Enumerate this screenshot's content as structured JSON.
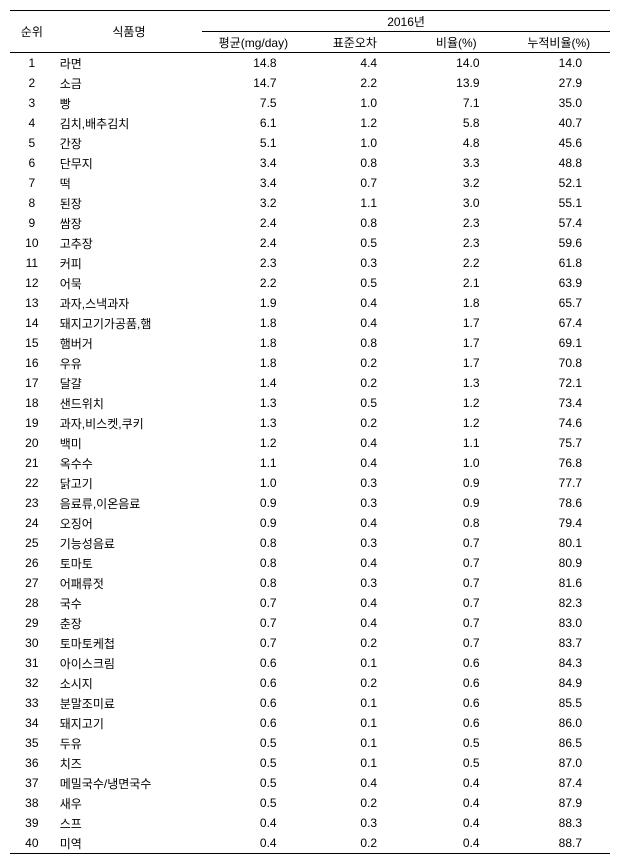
{
  "headers": {
    "rank": "순위",
    "foodName": "식품명",
    "year": "2016년",
    "avg": "평균(mg/day)",
    "stdErr": "표준오차",
    "ratio": "비율(%)",
    "cumRatio": "누적비율(%)"
  },
  "rows": [
    {
      "rank": "1",
      "name": "라면",
      "avg": "14.8",
      "stdErr": "4.4",
      "ratio": "14.0",
      "cumRatio": "14.0"
    },
    {
      "rank": "2",
      "name": "소금",
      "avg": "14.7",
      "stdErr": "2.2",
      "ratio": "13.9",
      "cumRatio": "27.9"
    },
    {
      "rank": "3",
      "name": "빵",
      "avg": "7.5",
      "stdErr": "1.0",
      "ratio": "7.1",
      "cumRatio": "35.0"
    },
    {
      "rank": "4",
      "name": "김치,배추김치",
      "avg": "6.1",
      "stdErr": "1.2",
      "ratio": "5.8",
      "cumRatio": "40.7"
    },
    {
      "rank": "5",
      "name": "간장",
      "avg": "5.1",
      "stdErr": "1.0",
      "ratio": "4.8",
      "cumRatio": "45.6"
    },
    {
      "rank": "6",
      "name": "단무지",
      "avg": "3.4",
      "stdErr": "0.8",
      "ratio": "3.3",
      "cumRatio": "48.8"
    },
    {
      "rank": "7",
      "name": "떡",
      "avg": "3.4",
      "stdErr": "0.7",
      "ratio": "3.2",
      "cumRatio": "52.1"
    },
    {
      "rank": "8",
      "name": "된장",
      "avg": "3.2",
      "stdErr": "1.1",
      "ratio": "3.0",
      "cumRatio": "55.1"
    },
    {
      "rank": "9",
      "name": "쌈장",
      "avg": "2.4",
      "stdErr": "0.8",
      "ratio": "2.3",
      "cumRatio": "57.4"
    },
    {
      "rank": "10",
      "name": "고추장",
      "avg": "2.4",
      "stdErr": "0.5",
      "ratio": "2.3",
      "cumRatio": "59.6"
    },
    {
      "rank": "11",
      "name": "커피",
      "avg": "2.3",
      "stdErr": "0.3",
      "ratio": "2.2",
      "cumRatio": "61.8"
    },
    {
      "rank": "12",
      "name": "어묵",
      "avg": "2.2",
      "stdErr": "0.5",
      "ratio": "2.1",
      "cumRatio": "63.9"
    },
    {
      "rank": "13",
      "name": "과자,스낵과자",
      "avg": "1.9",
      "stdErr": "0.4",
      "ratio": "1.8",
      "cumRatio": "65.7"
    },
    {
      "rank": "14",
      "name": "돼지고기가공품,햄",
      "avg": "1.8",
      "stdErr": "0.4",
      "ratio": "1.7",
      "cumRatio": "67.4"
    },
    {
      "rank": "15",
      "name": "햄버거",
      "avg": "1.8",
      "stdErr": "0.8",
      "ratio": "1.7",
      "cumRatio": "69.1"
    },
    {
      "rank": "16",
      "name": "우유",
      "avg": "1.8",
      "stdErr": "0.2",
      "ratio": "1.7",
      "cumRatio": "70.8"
    },
    {
      "rank": "17",
      "name": "달걀",
      "avg": "1.4",
      "stdErr": "0.2",
      "ratio": "1.3",
      "cumRatio": "72.1"
    },
    {
      "rank": "18",
      "name": "샌드위치",
      "avg": "1.3",
      "stdErr": "0.5",
      "ratio": "1.2",
      "cumRatio": "73.4"
    },
    {
      "rank": "19",
      "name": "과자,비스켓,쿠키",
      "avg": "1.3",
      "stdErr": "0.2",
      "ratio": "1.2",
      "cumRatio": "74.6"
    },
    {
      "rank": "20",
      "name": "백미",
      "avg": "1.2",
      "stdErr": "0.4",
      "ratio": "1.1",
      "cumRatio": "75.7"
    },
    {
      "rank": "21",
      "name": "옥수수",
      "avg": "1.1",
      "stdErr": "0.4",
      "ratio": "1.0",
      "cumRatio": "76.8"
    },
    {
      "rank": "22",
      "name": "닭고기",
      "avg": "1.0",
      "stdErr": "0.3",
      "ratio": "0.9",
      "cumRatio": "77.7"
    },
    {
      "rank": "23",
      "name": "음료류,이온음료",
      "avg": "0.9",
      "stdErr": "0.3",
      "ratio": "0.9",
      "cumRatio": "78.6"
    },
    {
      "rank": "24",
      "name": "오징어",
      "avg": "0.9",
      "stdErr": "0.4",
      "ratio": "0.8",
      "cumRatio": "79.4"
    },
    {
      "rank": "25",
      "name": "기능성음료",
      "avg": "0.8",
      "stdErr": "0.3",
      "ratio": "0.7",
      "cumRatio": "80.1"
    },
    {
      "rank": "26",
      "name": "토마토",
      "avg": "0.8",
      "stdErr": "0.4",
      "ratio": "0.7",
      "cumRatio": "80.9"
    },
    {
      "rank": "27",
      "name": "어패류젓",
      "avg": "0.8",
      "stdErr": "0.3",
      "ratio": "0.7",
      "cumRatio": "81.6"
    },
    {
      "rank": "28",
      "name": "국수",
      "avg": "0.7",
      "stdErr": "0.4",
      "ratio": "0.7",
      "cumRatio": "82.3"
    },
    {
      "rank": "29",
      "name": "춘장",
      "avg": "0.7",
      "stdErr": "0.4",
      "ratio": "0.7",
      "cumRatio": "83.0"
    },
    {
      "rank": "30",
      "name": "토마토케첩",
      "avg": "0.7",
      "stdErr": "0.2",
      "ratio": "0.7",
      "cumRatio": "83.7"
    },
    {
      "rank": "31",
      "name": "아이스크림",
      "avg": "0.6",
      "stdErr": "0.1",
      "ratio": "0.6",
      "cumRatio": "84.3"
    },
    {
      "rank": "32",
      "name": "소시지",
      "avg": "0.6",
      "stdErr": "0.2",
      "ratio": "0.6",
      "cumRatio": "84.9"
    },
    {
      "rank": "33",
      "name": "분말조미료",
      "avg": "0.6",
      "stdErr": "0.1",
      "ratio": "0.6",
      "cumRatio": "85.5"
    },
    {
      "rank": "34",
      "name": "돼지고기",
      "avg": "0.6",
      "stdErr": "0.1",
      "ratio": "0.6",
      "cumRatio": "86.0"
    },
    {
      "rank": "35",
      "name": "두유",
      "avg": "0.5",
      "stdErr": "0.1",
      "ratio": "0.5",
      "cumRatio": "86.5"
    },
    {
      "rank": "36",
      "name": "치즈",
      "avg": "0.5",
      "stdErr": "0.1",
      "ratio": "0.5",
      "cumRatio": "87.0"
    },
    {
      "rank": "37",
      "name": "메밀국수/냉면국수",
      "avg": "0.5",
      "stdErr": "0.4",
      "ratio": "0.4",
      "cumRatio": "87.4"
    },
    {
      "rank": "38",
      "name": "새우",
      "avg": "0.5",
      "stdErr": "0.2",
      "ratio": "0.4",
      "cumRatio": "87.9"
    },
    {
      "rank": "39",
      "name": "스프",
      "avg": "0.4",
      "stdErr": "0.3",
      "ratio": "0.4",
      "cumRatio": "88.3"
    },
    {
      "rank": "40",
      "name": "미역",
      "avg": "0.4",
      "stdErr": "0.2",
      "ratio": "0.4",
      "cumRatio": "88.7"
    }
  ]
}
